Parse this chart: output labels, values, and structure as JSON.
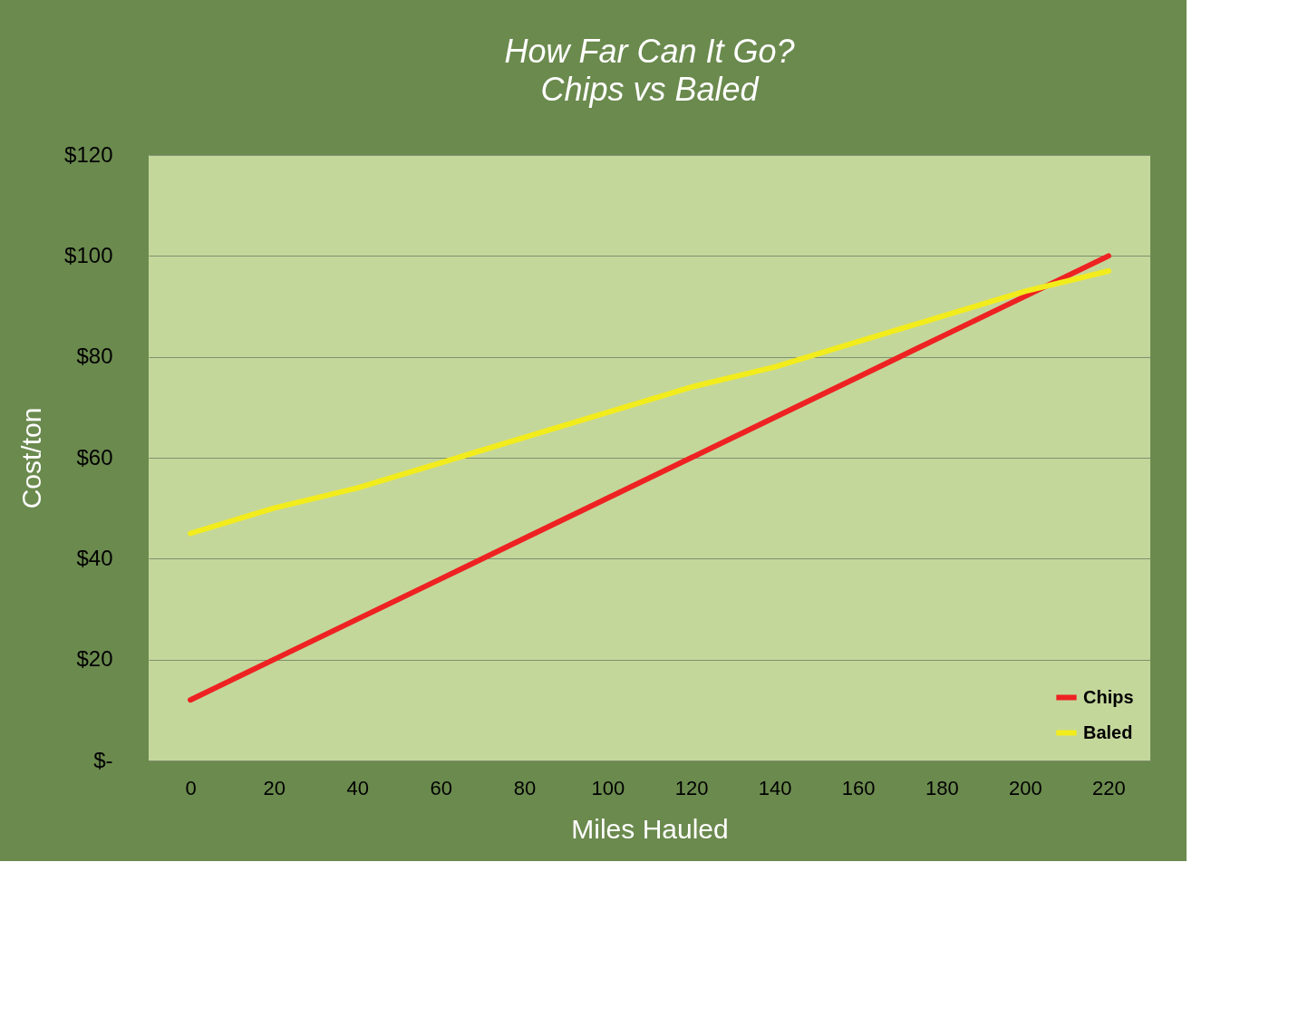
{
  "chart_data": {
    "type": "line",
    "title": "How Far Can It Go?",
    "subtitle": "Chips vs Baled",
    "xlabel": "Miles Hauled",
    "ylabel": "Cost/ton",
    "categories": [
      "0",
      "20",
      "40",
      "60",
      "80",
      "100",
      "120",
      "140",
      "160",
      "180",
      "200",
      "220"
    ],
    "series": [
      {
        "name": "Chips",
        "color": "#ee2222",
        "values": [
          12,
          20,
          28,
          36,
          44,
          52,
          60,
          68,
          76,
          84,
          92,
          100
        ]
      },
      {
        "name": "Baled",
        "color": "#f2ec1c",
        "values": [
          45,
          50,
          54,
          59,
          64,
          69,
          74,
          78,
          83,
          88,
          93,
          97
        ]
      }
    ],
    "ylim": [
      0,
      120
    ],
    "yticks": [
      {
        "value": 0,
        "label": "$-"
      },
      {
        "value": 20,
        "label": "$20"
      },
      {
        "value": 40,
        "label": "$40"
      },
      {
        "value": 60,
        "label": "$60"
      },
      {
        "value": 80,
        "label": "$80"
      },
      {
        "value": 100,
        "label": "$100"
      },
      {
        "value": 120,
        "label": "$120"
      }
    ],
    "grid": "y",
    "legend": "bottom right",
    "marker": "none",
    "line_style": "solid"
  }
}
